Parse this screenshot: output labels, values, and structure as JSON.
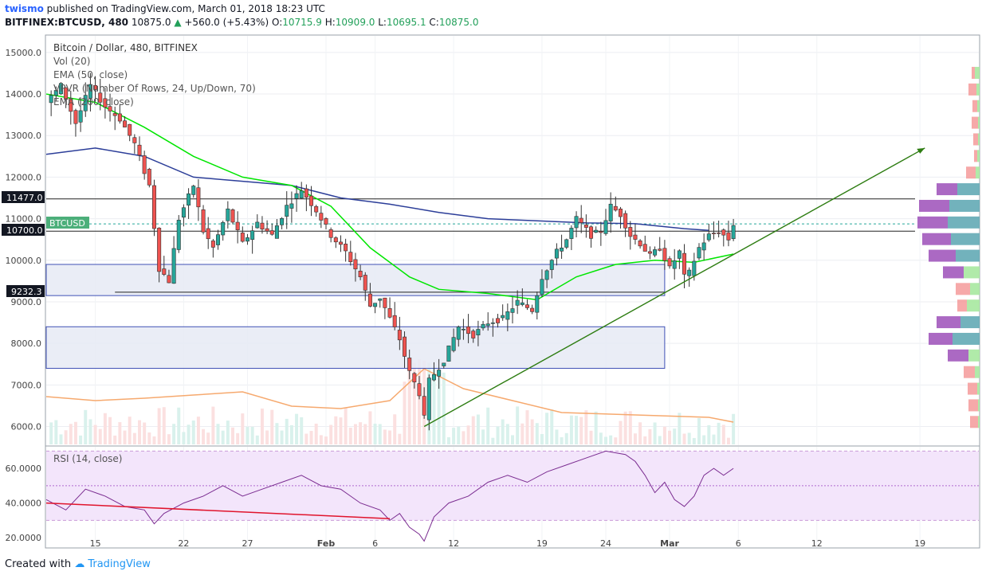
{
  "header": {
    "user": "twismo",
    "published": "published on TradingView.com, March 01, 2018 18:23 UTC",
    "symbol": "BITFINEX:BTCUSD, 480",
    "last": "10875.0",
    "change": "+560.0 (+5.43%)",
    "o_label": "O:",
    "o": "10715.9",
    "h_label": "H:",
    "h": "10909.0",
    "l_label": "L:",
    "l": "10695.1",
    "c_label": "C:",
    "c": "10875.0"
  },
  "legend": {
    "series": "Bitcoin / Dollar, 480, BITFINEX",
    "vol": "Vol (20)",
    "ema50": "EMA (50, close)",
    "vpvr": "VPVR (Number Of Rows, 24, Up/Down, 70)",
    "ema200": "EMA (200, close)"
  },
  "price_tags": {
    "level1": "11477.0",
    "level2": "10700.0",
    "level3": "9232.3",
    "symbol_tag": "BTCUSD"
  },
  "rsi": {
    "label": "RSI (14, close)",
    "ticks": [
      "60.0000",
      "40.0000",
      "20.0000"
    ]
  },
  "footer": {
    "created": "Created with",
    "brand": "TradingView"
  },
  "colors": {
    "up": "#26a69a",
    "down": "#ef5350",
    "ema50": "#00e600",
    "ema200": "#2c3e99",
    "rsi": "#7b2d91",
    "zone": "#e6eaf5",
    "trend": "#2e7d12"
  },
  "chart_data": {
    "type": "candlestick",
    "title": "Bitcoin / Dollar, 480, BITFINEX",
    "y_ticks": [
      15000,
      14000,
      13000,
      12000,
      11000,
      10000,
      9000,
      8000,
      7000,
      6000
    ],
    "y_tick_labels": [
      "15000.0",
      "14000.0",
      "13000.0",
      "12000.0",
      "11000.0",
      "10000.0",
      "9000.0",
      "8000.0",
      "7000.0",
      "6000.0"
    ],
    "ylim": [
      5550,
      15400
    ],
    "x_ticks": [
      "15",
      "22",
      "27",
      "Feb",
      "6",
      "12",
      "19",
      "24",
      "Mar",
      "6",
      "12",
      "19"
    ],
    "price_path": [
      [
        0,
        13800
      ],
      [
        3,
        14200
      ],
      [
        6,
        13300
      ],
      [
        9,
        14200
      ],
      [
        12,
        13700
      ],
      [
        15,
        13400
      ],
      [
        18,
        12800
      ],
      [
        21,
        11800
      ],
      [
        23,
        9800
      ],
      [
        25,
        9500
      ],
      [
        27,
        11000
      ],
      [
        30,
        11800
      ],
      [
        32,
        10700
      ],
      [
        34,
        10300
      ],
      [
        37,
        11200
      ],
      [
        40,
        10400
      ],
      [
        43,
        10900
      ],
      [
        46,
        10600
      ],
      [
        49,
        11300
      ],
      [
        52,
        11700
      ],
      [
        55,
        11200
      ],
      [
        58,
        10600
      ],
      [
        61,
        10200
      ],
      [
        64,
        9600
      ],
      [
        66,
        8900
      ],
      [
        68,
        9100
      ],
      [
        70,
        8600
      ],
      [
        72,
        8100
      ],
      [
        74,
        7300
      ],
      [
        76,
        6800
      ],
      [
        77,
        6200
      ],
      [
        78,
        7100
      ],
      [
        81,
        7600
      ],
      [
        84,
        8400
      ],
      [
        87,
        8200
      ],
      [
        90,
        8500
      ],
      [
        93,
        8600
      ],
      [
        96,
        9000
      ],
      [
        99,
        8800
      ],
      [
        101,
        9600
      ],
      [
        104,
        10200
      ],
      [
        106,
        10500
      ],
      [
        108,
        11000
      ],
      [
        111,
        10600
      ],
      [
        113,
        10700
      ],
      [
        115,
        11300
      ],
      [
        117,
        11100
      ],
      [
        119,
        10600
      ],
      [
        121,
        10400
      ],
      [
        123,
        10100
      ],
      [
        125,
        10300
      ],
      [
        127,
        9800
      ],
      [
        129,
        10200
      ],
      [
        130,
        9600
      ],
      [
        131,
        9700
      ],
      [
        133,
        10300
      ],
      [
        135,
        10600
      ],
      [
        137,
        10700
      ],
      [
        139,
        10500
      ],
      [
        140,
        10875
      ]
    ],
    "ema50": [
      [
        0,
        14000
      ],
      [
        10,
        13800
      ],
      [
        20,
        13200
      ],
      [
        30,
        12500
      ],
      [
        40,
        12000
      ],
      [
        50,
        11800
      ],
      [
        58,
        11300
      ],
      [
        66,
        10300
      ],
      [
        74,
        9600
      ],
      [
        80,
        9300
      ],
      [
        90,
        9200
      ],
      [
        100,
        9050
      ],
      [
        108,
        9600
      ],
      [
        116,
        9900
      ],
      [
        124,
        10000
      ],
      [
        132,
        9950
      ],
      [
        140,
        10150
      ]
    ],
    "ema200": [
      [
        0,
        12550
      ],
      [
        10,
        12700
      ],
      [
        20,
        12500
      ],
      [
        30,
        12000
      ],
      [
        40,
        11900
      ],
      [
        50,
        11800
      ],
      [
        60,
        11500
      ],
      [
        70,
        11350
      ],
      [
        80,
        11150
      ],
      [
        90,
        11000
      ],
      [
        100,
        10950
      ],
      [
        110,
        10900
      ],
      [
        120,
        10880
      ],
      [
        130,
        10760
      ],
      [
        135,
        10720
      ]
    ],
    "ema200_points_x_end": 140,
    "zones": [
      {
        "from": 9150,
        "to": 9900
      },
      {
        "from": 7400,
        "to": 8400
      }
    ],
    "horizontal_levels": [
      11477.0,
      10700.0,
      9232.3
    ],
    "trendline": {
      "from": [
        77,
        6000
      ],
      "to": [
        179,
        12700
      ]
    },
    "volume_ema_path": [
      [
        0,
        60
      ],
      [
        10,
        55
      ],
      [
        20,
        58
      ],
      [
        30,
        62
      ],
      [
        40,
        66
      ],
      [
        50,
        48
      ],
      [
        60,
        45
      ],
      [
        70,
        55
      ],
      [
        77,
        95
      ],
      [
        85,
        70
      ],
      [
        95,
        55
      ],
      [
        105,
        40
      ],
      [
        115,
        38
      ],
      [
        125,
        36
      ],
      [
        135,
        34
      ],
      [
        140,
        28
      ]
    ],
    "vpvr": [
      {
        "price": 14500,
        "up": 6,
        "down": 4
      },
      {
        "price": 14100,
        "up": 4,
        "down": 10
      },
      {
        "price": 13700,
        "up": 3,
        "down": 6
      },
      {
        "price": 13300,
        "up": 2,
        "down": 8
      },
      {
        "price": 12900,
        "up": 2,
        "down": 6
      },
      {
        "price": 12500,
        "up": 3,
        "down": 4
      },
      {
        "price": 12100,
        "up": 5,
        "down": 12
      },
      {
        "price": 11700,
        "up": 28,
        "down": 26
      },
      {
        "price": 11300,
        "up": 38,
        "down": 38
      },
      {
        "price": 10900,
        "up": 40,
        "down": 38
      },
      {
        "price": 10500,
        "up": 36,
        "down": 36
      },
      {
        "price": 10100,
        "up": 30,
        "down": 34
      },
      {
        "price": 9700,
        "up": 20,
        "down": 26
      },
      {
        "price": 9300,
        "up": 12,
        "down": 18
      },
      {
        "price": 8900,
        "up": 16,
        "down": 12
      },
      {
        "price": 8500,
        "up": 24,
        "down": 30
      },
      {
        "price": 8100,
        "up": 34,
        "down": 30
      },
      {
        "price": 7700,
        "up": 14,
        "down": 26
      },
      {
        "price": 7300,
        "up": 6,
        "down": 14
      },
      {
        "price": 6900,
        "up": 3,
        "down": 12
      },
      {
        "price": 6500,
        "up": 2,
        "down": 12
      },
      {
        "price": 6100,
        "up": 2,
        "down": 10
      }
    ],
    "rsi_path": [
      [
        0,
        42
      ],
      [
        4,
        36
      ],
      [
        8,
        48
      ],
      [
        12,
        44
      ],
      [
        16,
        38
      ],
      [
        20,
        36
      ],
      [
        22,
        28
      ],
      [
        24,
        34
      ],
      [
        28,
        40
      ],
      [
        32,
        44
      ],
      [
        36,
        50
      ],
      [
        40,
        44
      ],
      [
        44,
        48
      ],
      [
        48,
        52
      ],
      [
        52,
        56
      ],
      [
        56,
        50
      ],
      [
        60,
        48
      ],
      [
        64,
        40
      ],
      [
        68,
        36
      ],
      [
        70,
        30
      ],
      [
        72,
        34
      ],
      [
        74,
        26
      ],
      [
        76,
        22
      ],
      [
        77,
        18
      ],
      [
        79,
        32
      ],
      [
        82,
        40
      ],
      [
        86,
        44
      ],
      [
        90,
        52
      ],
      [
        94,
        56
      ],
      [
        98,
        52
      ],
      [
        102,
        58
      ],
      [
        106,
        62
      ],
      [
        110,
        66
      ],
      [
        114,
        70
      ],
      [
        118,
        68
      ],
      [
        120,
        64
      ],
      [
        122,
        56
      ],
      [
        124,
        46
      ],
      [
        126,
        52
      ],
      [
        128,
        42
      ],
      [
        130,
        38
      ],
      [
        132,
        44
      ],
      [
        134,
        56
      ],
      [
        136,
        60
      ],
      [
        138,
        56
      ],
      [
        140,
        60
      ]
    ],
    "rsi_ylim": [
      15,
      72
    ],
    "rsi_band": [
      30,
      70
    ],
    "rsi_mid": 50,
    "rsi_trend": {
      "from": [
        0,
        40
      ],
      "to": [
        70,
        31
      ]
    }
  }
}
